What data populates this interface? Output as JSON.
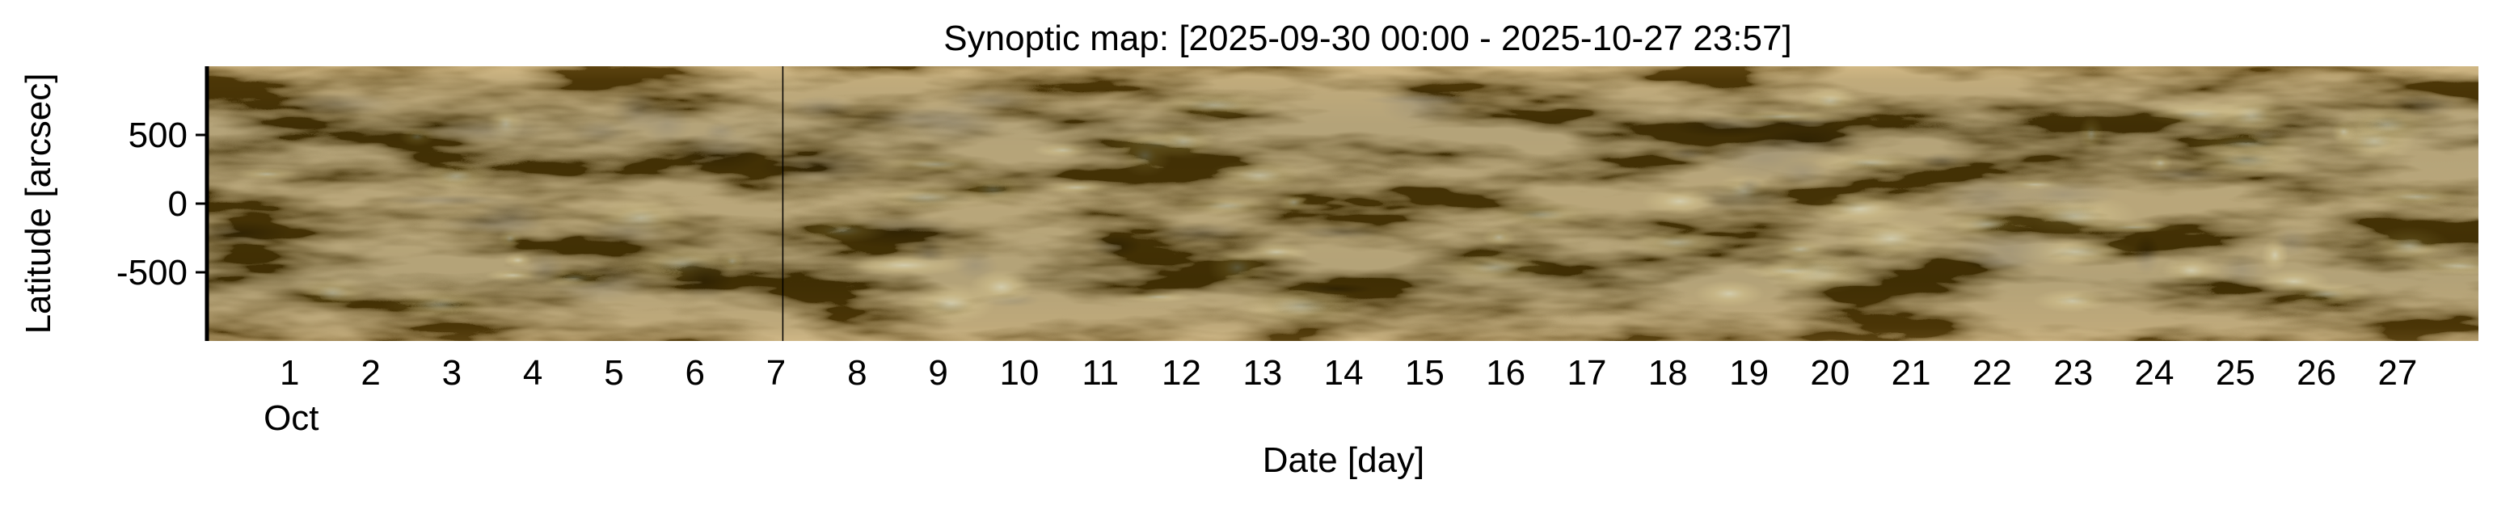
{
  "chart_data": {
    "type": "heatmap",
    "title": "Synoptic map: [2025-09-30 00:00 - 2025-10-27 23:57]",
    "xlabel": "Date [day]",
    "ylabel": "Latitude [arcsec]",
    "xlim": [
      "2025-09-30",
      "2025-10-27T23:57"
    ],
    "ylim": [
      -1000,
      1000
    ],
    "y_ticks": [
      -500,
      0,
      500
    ],
    "y_tick_labels": [
      "-500",
      "0",
      "500"
    ],
    "x_ticks": [
      "2025-10-01",
      "2025-10-02",
      "2025-10-03",
      "2025-10-04",
      "2025-10-05",
      "2025-10-06",
      "2025-10-07",
      "2025-10-08",
      "2025-10-09",
      "2025-10-10",
      "2025-10-11",
      "2025-10-12",
      "2025-10-13",
      "2025-10-14",
      "2025-10-15",
      "2025-10-16",
      "2025-10-17",
      "2025-10-18",
      "2025-10-19",
      "2025-10-20",
      "2025-10-21",
      "2025-10-22",
      "2025-10-23",
      "2025-10-24",
      "2025-10-25",
      "2025-10-26",
      "2025-10-27"
    ],
    "x_tick_labels": [
      "1",
      "2",
      "3",
      "4",
      "5",
      "6",
      "7",
      "8",
      "9",
      "10",
      "11",
      "12",
      "13",
      "14",
      "15",
      "16",
      "17",
      "18",
      "19",
      "20",
      "21",
      "22",
      "23",
      "24",
      "25",
      "26",
      "27"
    ],
    "x_month_label": "Oct",
    "data_gap": "2025-10-07T02:00",
    "colormap": [
      "#3a2a00",
      "#7a5a06",
      "#b98a0e",
      "#e0aa18",
      "#f6cc44",
      "#fff0a0"
    ],
    "grid": false
  }
}
